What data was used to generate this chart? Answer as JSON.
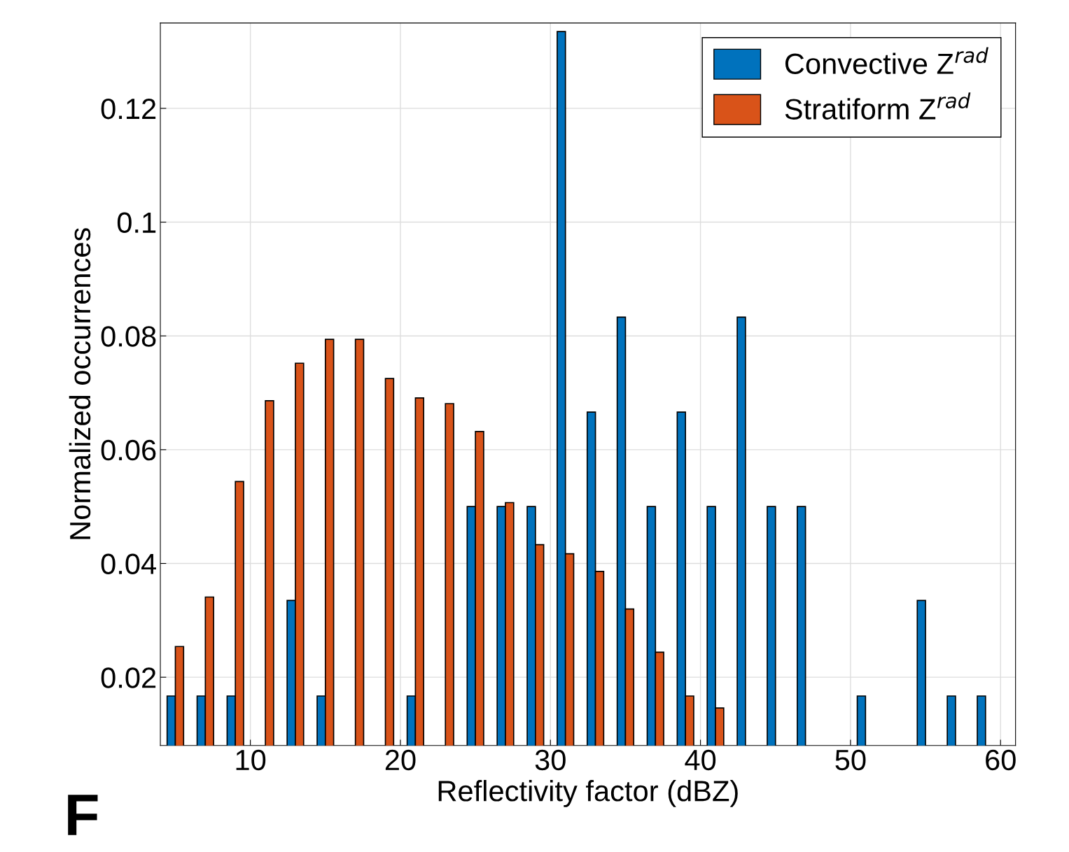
{
  "chart_data": {
    "type": "bar",
    "xlabel": "Reflectivity factor (dBZ)",
    "ylabel": "Normalized occurrences",
    "x": [
      5,
      7,
      9,
      11,
      13,
      15,
      17,
      19,
      21,
      23,
      25,
      27,
      29,
      31,
      33,
      35,
      37,
      39,
      41,
      43,
      45,
      47,
      49,
      51,
      53,
      55,
      57,
      59
    ],
    "series": [
      {
        "name": "Convective Z$^{rad}$",
        "color": "#0072bd",
        "values": [
          0.0167,
          0.0167,
          0.0167,
          null,
          0.0335,
          0.0167,
          null,
          null,
          0.0167,
          null,
          0.05,
          0.05,
          0.05,
          0.1335,
          0.0666,
          0.0833,
          0.05,
          0.0666,
          0.05,
          0.0833,
          0.05,
          0.05,
          null,
          0.0167,
          null,
          0.0335,
          0.0167,
          0.0167
        ]
      },
      {
        "name": "Stratiform Z$^{rad}$",
        "color": "#d95319",
        "values": [
          0.0254,
          0.0341,
          0.0544,
          0.0686,
          0.0752,
          0.0794,
          0.0794,
          0.0725,
          0.0691,
          0.0681,
          0.0632,
          0.0507,
          0.0433,
          0.0417,
          0.0386,
          0.032,
          0.0244,
          0.0167,
          0.0146,
          null,
          null,
          null,
          null,
          null,
          null,
          null,
          null,
          null
        ]
      }
    ],
    "xlim": [
      4,
      61
    ],
    "ylim": [
      0.008,
      0.135
    ],
    "xticks": [
      10,
      20,
      30,
      40,
      50,
      60
    ],
    "yticks": [
      0.02,
      0.04,
      0.06,
      0.08,
      0.1,
      0.12
    ],
    "grid": true,
    "legend": "top right",
    "annotations": [
      "F"
    ]
  }
}
